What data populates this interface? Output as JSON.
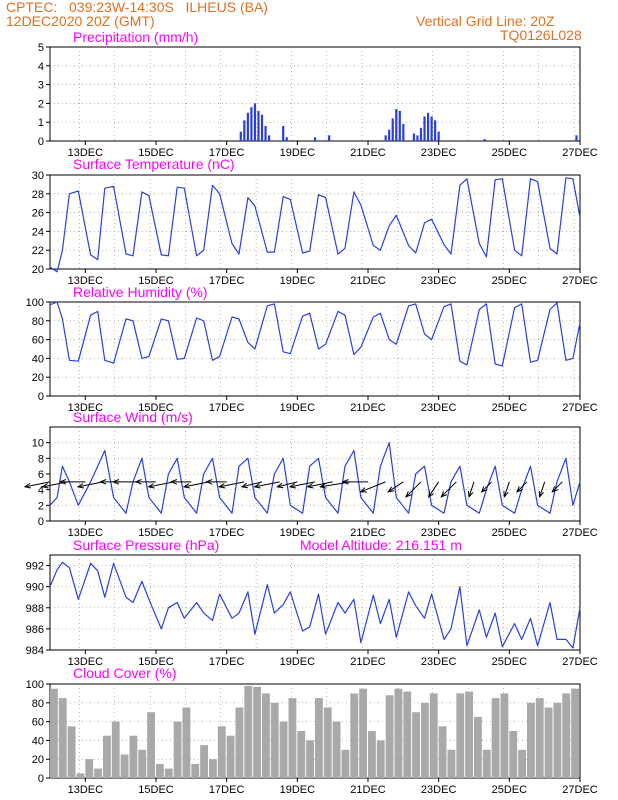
{
  "header": {
    "line1": "CPTEC:   039:23W-14:30S   ILHEUS (BA)",
    "line2": "12DEC2020 20Z (GMT)",
    "grid_note": "Vertical Grid Line: 20Z",
    "code": "TQ0126L028"
  },
  "colors": {
    "title": "#ff00ff",
    "header": "#e07020",
    "line": "#2a3fe0",
    "arrow": "#000000",
    "cloud": "#a9a9a9",
    "grid": "#888888"
  },
  "x_tick_labels": [
    "13DEC",
    "15DEC",
    "17DEC",
    "19DEC",
    "21DEC",
    "23DEC",
    "25DEC",
    "27DEC"
  ],
  "chart_data": [
    {
      "type": "bar",
      "title": "Precipitation  (mm/h)",
      "ylim": [
        0,
        5
      ],
      "yticks": [
        "0",
        "1",
        "2",
        "3",
        "4",
        "5"
      ],
      "x_unit": "day of December 2020 (UTC)",
      "x": [
        17.4,
        17.5,
        17.6,
        17.7,
        17.8,
        17.9,
        18.0,
        18.1,
        18.2,
        18.6,
        18.7,
        19.5,
        19.9,
        21.5,
        21.6,
        21.7,
        21.8,
        21.9,
        22.0,
        22.3,
        22.4,
        22.5,
        22.6,
        22.7,
        22.8,
        22.9,
        23.0,
        24.3,
        26.9
      ],
      "values": [
        0.5,
        1.1,
        1.5,
        1.8,
        2.0,
        1.6,
        1.4,
        0.8,
        0.3,
        0.8,
        0.2,
        0.2,
        0.3,
        0.3,
        0.6,
        1.2,
        1.7,
        1.6,
        0.9,
        0.4,
        0.3,
        0.7,
        1.3,
        1.5,
        1.3,
        1.1,
        0.5,
        0.1,
        0.3
      ]
    },
    {
      "type": "line",
      "title": "Surface Temperature  (nC)",
      "ylim": [
        20,
        30
      ],
      "yticks": [
        "20",
        "22",
        "24",
        "26",
        "28",
        "30"
      ],
      "x": [
        12.0,
        12.2,
        12.35,
        12.55,
        12.8,
        13.15,
        13.35,
        13.55,
        13.8,
        14.15,
        14.35,
        14.6,
        14.8,
        15.15,
        15.35,
        15.6,
        15.8,
        16.15,
        16.35,
        16.6,
        16.8,
        17.15,
        17.35,
        17.6,
        17.8,
        18.15,
        18.35,
        18.6,
        18.8,
        19.15,
        19.35,
        19.6,
        19.8,
        20.15,
        20.35,
        20.6,
        20.8,
        21.15,
        21.35,
        21.6,
        21.8,
        22.15,
        22.35,
        22.6,
        22.8,
        23.15,
        23.35,
        23.6,
        23.8,
        24.15,
        24.35,
        24.6,
        24.8,
        25.15,
        25.35,
        25.6,
        25.8,
        26.15,
        26.35,
        26.6,
        26.8,
        27.0
      ],
      "values": [
        20.2,
        19.7,
        22.0,
        28.0,
        28.3,
        21.5,
        21.0,
        28.6,
        28.8,
        21.6,
        21.4,
        28.2,
        27.8,
        21.5,
        21.4,
        28.7,
        28.6,
        21.4,
        22.0,
        28.9,
        28.0,
        22.7,
        21.6,
        27.6,
        26.7,
        21.8,
        21.8,
        27.7,
        27.4,
        21.7,
        21.9,
        27.9,
        27.6,
        21.6,
        22.2,
        28.2,
        26.8,
        22.5,
        22.0,
        24.6,
        25.7,
        22.5,
        21.7,
        24.9,
        25.3,
        22.6,
        21.6,
        28.9,
        29.6,
        22.7,
        21.3,
        29.5,
        29.6,
        22.0,
        21.4,
        29.6,
        29.3,
        22.2,
        21.6,
        29.7,
        29.6,
        25.5
      ]
    },
    {
      "type": "line",
      "title": "Relative Humidity  (%)",
      "ylim": [
        0,
        100
      ],
      "yticks": [
        "0",
        "20",
        "40",
        "60",
        "80",
        "100"
      ],
      "x": [
        12.0,
        12.2,
        12.35,
        12.55,
        12.8,
        13.15,
        13.35,
        13.55,
        13.8,
        14.15,
        14.35,
        14.6,
        14.8,
        15.15,
        15.35,
        15.6,
        15.8,
        16.15,
        16.35,
        16.6,
        16.8,
        17.15,
        17.35,
        17.6,
        17.8,
        18.15,
        18.35,
        18.6,
        18.8,
        19.15,
        19.35,
        19.6,
        19.8,
        20.15,
        20.35,
        20.6,
        20.8,
        21.15,
        21.35,
        21.6,
        21.8,
        22.15,
        22.35,
        22.6,
        22.8,
        23.15,
        23.35,
        23.6,
        23.8,
        24.15,
        24.35,
        24.6,
        24.8,
        25.15,
        25.35,
        25.6,
        25.8,
        26.15,
        26.35,
        26.6,
        26.8,
        27.0
      ],
      "values": [
        97,
        100,
        82,
        38,
        37,
        86,
        90,
        38,
        35,
        82,
        80,
        40,
        42,
        82,
        80,
        39,
        40,
        83,
        80,
        38,
        42,
        84,
        82,
        57,
        50,
        96,
        98,
        47,
        45,
        85,
        88,
        50,
        55,
        90,
        86,
        44,
        52,
        84,
        88,
        60,
        55,
        96,
        98,
        66,
        60,
        95,
        98,
        37,
        33,
        92,
        98,
        34,
        32,
        94,
        98,
        36,
        38,
        92,
        99,
        38,
        40,
        78
      ]
    },
    {
      "type": "line",
      "title": "Surface  Wind  (m/s)",
      "ylim": [
        0,
        12
      ],
      "yticks": [
        "0",
        "2",
        "4",
        "6",
        "8",
        "10"
      ],
      "x": [
        12.0,
        12.2,
        12.35,
        12.55,
        12.8,
        13.15,
        13.35,
        13.55,
        13.8,
        14.15,
        14.35,
        14.6,
        14.8,
        15.15,
        15.35,
        15.6,
        15.8,
        16.15,
        16.35,
        16.6,
        16.8,
        17.15,
        17.35,
        17.6,
        17.8,
        18.15,
        18.35,
        18.6,
        18.8,
        19.15,
        19.35,
        19.6,
        19.8,
        20.15,
        20.35,
        20.6,
        20.8,
        21.15,
        21.35,
        21.6,
        21.8,
        22.15,
        22.35,
        22.6,
        22.8,
        23.15,
        23.35,
        23.6,
        23.8,
        24.15,
        24.35,
        24.6,
        24.8,
        25.15,
        25.35,
        25.6,
        25.8,
        26.15,
        26.35,
        26.6,
        26.8,
        27.0
      ],
      "values": [
        2,
        3,
        7,
        5,
        2,
        5,
        7,
        9,
        3,
        1,
        5,
        8,
        3,
        1,
        6,
        8,
        3,
        1,
        6,
        8,
        3,
        1,
        7,
        8,
        3,
        1,
        6,
        8,
        2,
        1,
        7,
        8,
        3,
        1,
        7,
        9,
        3,
        1,
        7,
        10,
        3,
        1,
        6,
        7,
        2,
        1,
        5,
        7,
        2,
        1,
        4,
        7,
        2,
        1,
        4,
        7,
        2,
        1,
        5,
        8,
        2,
        5
      ],
      "vectors": {
        "x": [
          12.0,
          12.5,
          13.0,
          13.5,
          14.0,
          14.5,
          15.0,
          15.5,
          16.0,
          16.5,
          17.0,
          17.5,
          18.0,
          18.5,
          19.0,
          19.5,
          20.0,
          20.5,
          21.0,
          21.5,
          22.0,
          22.5,
          23.0,
          23.5,
          24.0,
          24.5,
          25.0,
          25.5,
          26.0,
          26.5
        ],
        "u": [
          -5,
          -5,
          -5,
          -5,
          -4,
          -5,
          -4,
          -5,
          -4,
          -5,
          -4,
          -5,
          -4,
          -5,
          -4,
          -5,
          -5,
          -6,
          -5,
          -5,
          -3,
          -3,
          -2,
          -3,
          -1,
          -2,
          -1,
          -2,
          -1,
          -2
        ],
        "v": [
          -1,
          -1,
          0,
          -1,
          0,
          0,
          0,
          -1,
          0,
          -1,
          0,
          -1,
          -1,
          -1,
          -1,
          -1,
          -1,
          -1,
          0,
          -2,
          -2,
          -3,
          -3,
          -3,
          -3,
          -2,
          -3,
          -2,
          -3,
          -2
        ]
      }
    },
    {
      "type": "line",
      "title": "Surface  Pressure  (hPa)",
      "annotation": "Model  Altitude:  216.151  m",
      "ylim": [
        984,
        993
      ],
      "yticks": [
        "984",
        "986",
        "988",
        "990",
        "992"
      ],
      "x": [
        12.0,
        12.2,
        12.35,
        12.55,
        12.8,
        13.15,
        13.35,
        13.55,
        13.8,
        14.15,
        14.35,
        14.6,
        14.8,
        15.15,
        15.35,
        15.6,
        15.8,
        16.15,
        16.35,
        16.6,
        16.8,
        17.15,
        17.35,
        17.6,
        17.8,
        18.15,
        18.35,
        18.6,
        18.8,
        19.15,
        19.35,
        19.6,
        19.8,
        20.15,
        20.35,
        20.6,
        20.8,
        21.15,
        21.35,
        21.6,
        21.8,
        22.15,
        22.35,
        22.6,
        22.8,
        23.15,
        23.35,
        23.6,
        23.8,
        24.15,
        24.35,
        24.6,
        24.8,
        25.15,
        25.35,
        25.6,
        25.8,
        26.15,
        26.35,
        26.6,
        26.8,
        27.0
      ],
      "values": [
        990.0,
        991.6,
        992.3,
        991.8,
        988.8,
        992.2,
        991.5,
        989.0,
        992.2,
        989.0,
        988.5,
        990.5,
        988.8,
        986.0,
        988.0,
        988.5,
        987.0,
        988.5,
        987.5,
        986.8,
        989.3,
        987.0,
        987.5,
        989.5,
        985.5,
        990.2,
        987.5,
        988.3,
        989.5,
        985.8,
        986.2,
        989.3,
        985.5,
        988.5,
        987.5,
        988.8,
        984.7,
        989.2,
        986.5,
        988.8,
        985.2,
        989.5,
        988.2,
        987.0,
        989.3,
        985.0,
        986.0,
        990.0,
        984.4,
        987.8,
        985.2,
        987.5,
        984.3,
        986.5,
        985.0,
        987.0,
        984.4,
        988.5,
        985.0,
        985.0,
        984.2,
        988.0
      ]
    },
    {
      "type": "bar",
      "title": "Cloud  Cover  (%)",
      "ylim": [
        0,
        100
      ],
      "yticks": [
        "0",
        "20",
        "40",
        "60",
        "80",
        "100"
      ],
      "x": [
        12.0,
        12.25,
        12.5,
        12.75,
        13.0,
        13.25,
        13.5,
        13.75,
        14.0,
        14.25,
        14.5,
        14.75,
        15.0,
        15.25,
        15.5,
        15.75,
        16.0,
        16.25,
        16.5,
        16.75,
        17.0,
        17.25,
        17.5,
        17.75,
        18.0,
        18.25,
        18.5,
        18.75,
        19.0,
        19.25,
        19.5,
        19.75,
        20.0,
        20.25,
        20.5,
        20.75,
        21.0,
        21.25,
        21.5,
        21.75,
        22.0,
        22.25,
        22.5,
        22.75,
        23.0,
        23.25,
        23.5,
        23.75,
        24.0,
        24.25,
        24.5,
        24.75,
        25.0,
        25.25,
        25.5,
        25.75,
        26.0,
        26.25,
        26.5,
        26.75
      ],
      "values": [
        95,
        85,
        55,
        5,
        20,
        10,
        45,
        60,
        25,
        45,
        30,
        70,
        15,
        10,
        60,
        75,
        15,
        35,
        20,
        55,
        45,
        75,
        98,
        97,
        90,
        80,
        60,
        85,
        50,
        40,
        85,
        75,
        60,
        30,
        90,
        95,
        50,
        40,
        88,
        95,
        92,
        70,
        80,
        90,
        55,
        30,
        90,
        92,
        65,
        30,
        85,
        90,
        50,
        30,
        80,
        85,
        75,
        80,
        90,
        95
      ]
    }
  ]
}
